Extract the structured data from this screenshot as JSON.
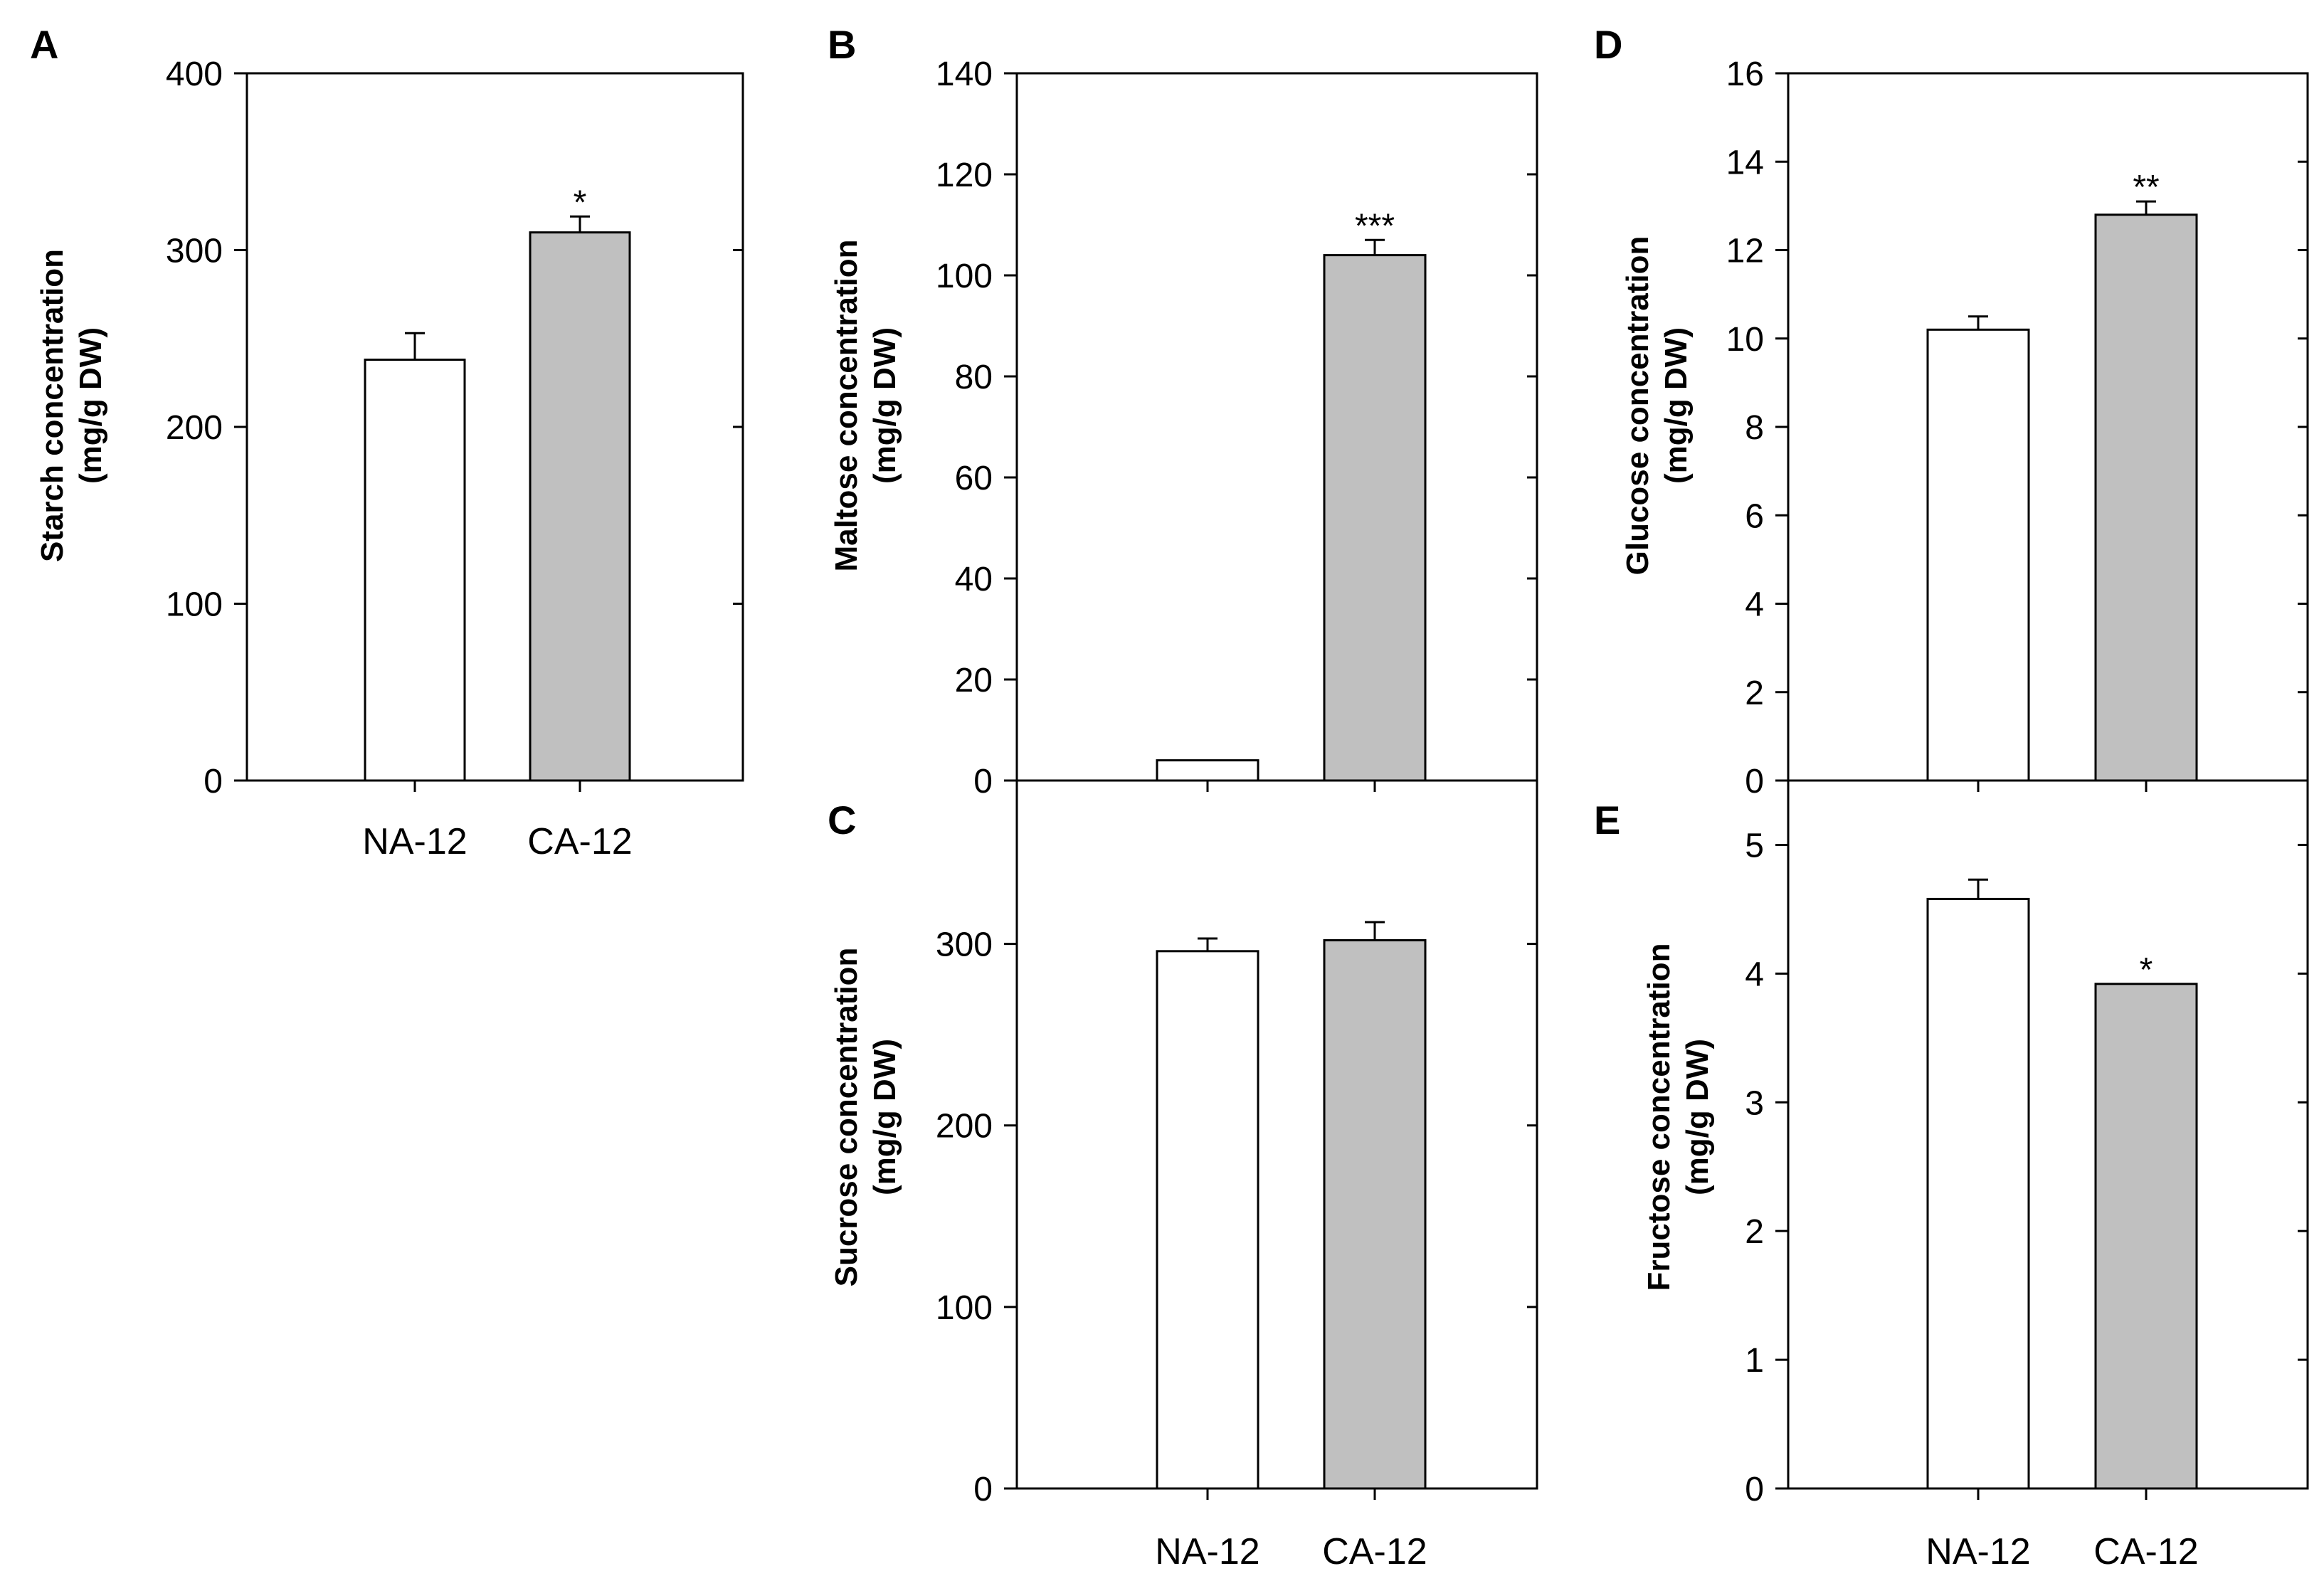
{
  "figure": {
    "categories": [
      "NA-12",
      "CA-12"
    ]
  },
  "chart_data": [
    {
      "panel": "A",
      "type": "bar",
      "categories": [
        "NA-12",
        "CA-12"
      ],
      "values": [
        238,
        310
      ],
      "errors": [
        15,
        9
      ],
      "significance": [
        "",
        "*"
      ],
      "ylabel_line1": "Starch concentration",
      "ylabel_line2": "(mg/g DW)",
      "ylim": [
        0,
        400
      ],
      "yticks": [
        0,
        100,
        200,
        300,
        400
      ],
      "fills": [
        "#ffffff",
        "#c0c0c0"
      ]
    },
    {
      "panel": "B",
      "type": "bar",
      "categories": [
        "NA-12",
        "CA-12"
      ],
      "values": [
        4,
        104
      ],
      "errors": [
        0,
        3
      ],
      "significance": [
        "",
        "***"
      ],
      "ylabel_line1": "Maltose concentration",
      "ylabel_line2": "(mg/g DW)",
      "ylim": [
        0,
        140
      ],
      "yticks": [
        0,
        20,
        40,
        60,
        80,
        100,
        120,
        140
      ],
      "fills": [
        "#ffffff",
        "#c0c0c0"
      ]
    },
    {
      "panel": "C",
      "type": "bar",
      "categories": [
        "NA-12",
        "CA-12"
      ],
      "values": [
        296,
        302
      ],
      "errors": [
        7,
        10
      ],
      "significance": [
        "",
        ""
      ],
      "ylabel_line1": "Sucrose concentration",
      "ylabel_line2": "(mg/g DW)",
      "ylim": [
        0,
        390
      ],
      "yticks": [
        0,
        100,
        200,
        300
      ],
      "fills": [
        "#ffffff",
        "#c0c0c0"
      ]
    },
    {
      "panel": "D",
      "type": "bar",
      "categories": [
        "NA-12",
        "CA-12"
      ],
      "values": [
        10.2,
        12.8
      ],
      "errors": [
        0.3,
        0.3
      ],
      "significance": [
        "",
        "**"
      ],
      "ylabel_line1": "Glucose concentration",
      "ylabel_line2": "(mg/g DW)",
      "ylim": [
        0,
        16
      ],
      "yticks": [
        0,
        2,
        4,
        6,
        8,
        10,
        12,
        14,
        16
      ],
      "fills": [
        "#ffffff",
        "#c0c0c0"
      ]
    },
    {
      "panel": "E",
      "type": "bar",
      "categories": [
        "NA-12",
        "CA-12"
      ],
      "values": [
        4.58,
        3.92
      ],
      "errors": [
        0.15,
        0
      ],
      "significance": [
        "",
        "*"
      ],
      "ylabel_line1": "Fructose concentration",
      "ylabel_line2": "(mg/g DW)",
      "ylim": [
        0,
        5.5
      ],
      "yticks": [
        0,
        1,
        2,
        3,
        4,
        5
      ],
      "fills": [
        "#ffffff",
        "#c0c0c0"
      ]
    }
  ]
}
